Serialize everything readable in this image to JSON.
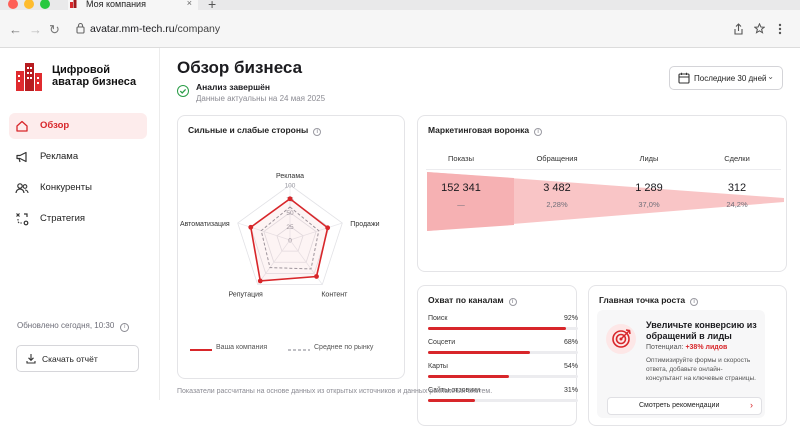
{
  "browser": {
    "tab_title": "Моя компания",
    "tab_close": "×",
    "new_tab": "+",
    "url_host": "avatar.mm-tech.ru",
    "url_path": "/company",
    "back": "←",
    "forward": "→",
    "reload": "↻"
  },
  "sidebar": {
    "brand_line1": "Цифровой",
    "brand_line2": "аватар бизнеса",
    "items": [
      {
        "label": "Обзор",
        "icon": "home-icon",
        "active": true
      },
      {
        "label": "Реклама",
        "icon": "megaphone-icon",
        "active": false
      },
      {
        "label": "Конкуренты",
        "icon": "users-icon",
        "active": false
      },
      {
        "label": "Стратегия",
        "icon": "strategy-icon",
        "active": false
      }
    ],
    "updated": "Обновлено сегодня, 10:30",
    "download": "Скачать отчёт"
  },
  "header": {
    "title": "Обзор бизнеса",
    "status_title": "Анализ завершён",
    "status_sub": "Данные актуальны на 24 мая 2025",
    "date_range": "Последние 30 дней"
  },
  "radar": {
    "title": "Сильные и слабые стороны",
    "ticks": [
      "100",
      "75",
      "50",
      "25",
      "0"
    ],
    "legend_company": "Ваша компания",
    "legend_market": "Среднее по рынку"
  },
  "chart_data": {
    "type": "radar",
    "categories": [
      "Реклама",
      "Продажи",
      "Контент",
      "Репутация",
      "Автоматизация"
    ],
    "range": [
      0,
      100
    ],
    "series": [
      {
        "name": "Ваша компания",
        "values": [
          75,
          72,
          82,
          92,
          75
        ],
        "color": "#d8262a"
      },
      {
        "name": "Среднее по рынку",
        "values": [
          60,
          55,
          65,
          62,
          55
        ],
        "color": "#9a9aa2"
      }
    ]
  },
  "funnel": {
    "title": "Маркетинговая воронка",
    "stages": [
      {
        "label": "Показы",
        "value": "152 341",
        "pct": "—"
      },
      {
        "label": "Обращения",
        "value": "3 482",
        "pct": "2,28%"
      },
      {
        "label": "Лиды",
        "value": "1 289",
        "pct": "37,0%"
      },
      {
        "label": "Сделки",
        "value": "312",
        "pct": "24,2%"
      }
    ]
  },
  "channels": {
    "title": "Охват по каналам",
    "items": [
      {
        "name": "Поиск",
        "pct_label": "92%",
        "pct": 92
      },
      {
        "name": "Соцсети",
        "pct_label": "68%",
        "pct": 68
      },
      {
        "name": "Карты",
        "pct_label": "54%",
        "pct": 54
      },
      {
        "name": "Сайты-отзовики",
        "pct_label": "31%",
        "pct": 31
      }
    ]
  },
  "growth": {
    "title": "Главная точка роста",
    "headline": "Увеличьте конверсию из обращений в лиды",
    "potential_prefix": "Потенциал:",
    "potential_value": "+38% лидов",
    "description": "Оптимизируйте формы и скорость ответа, добавьте онлайн-консультант на ключевые страницы.",
    "button": "Смотреть рекомендации"
  },
  "footer": "Показатели рассчитаны на основе данных из открытых источников и данных рекламных систем.",
  "colors": {
    "accent": "#d8262a",
    "ok": "#2a9d47"
  }
}
